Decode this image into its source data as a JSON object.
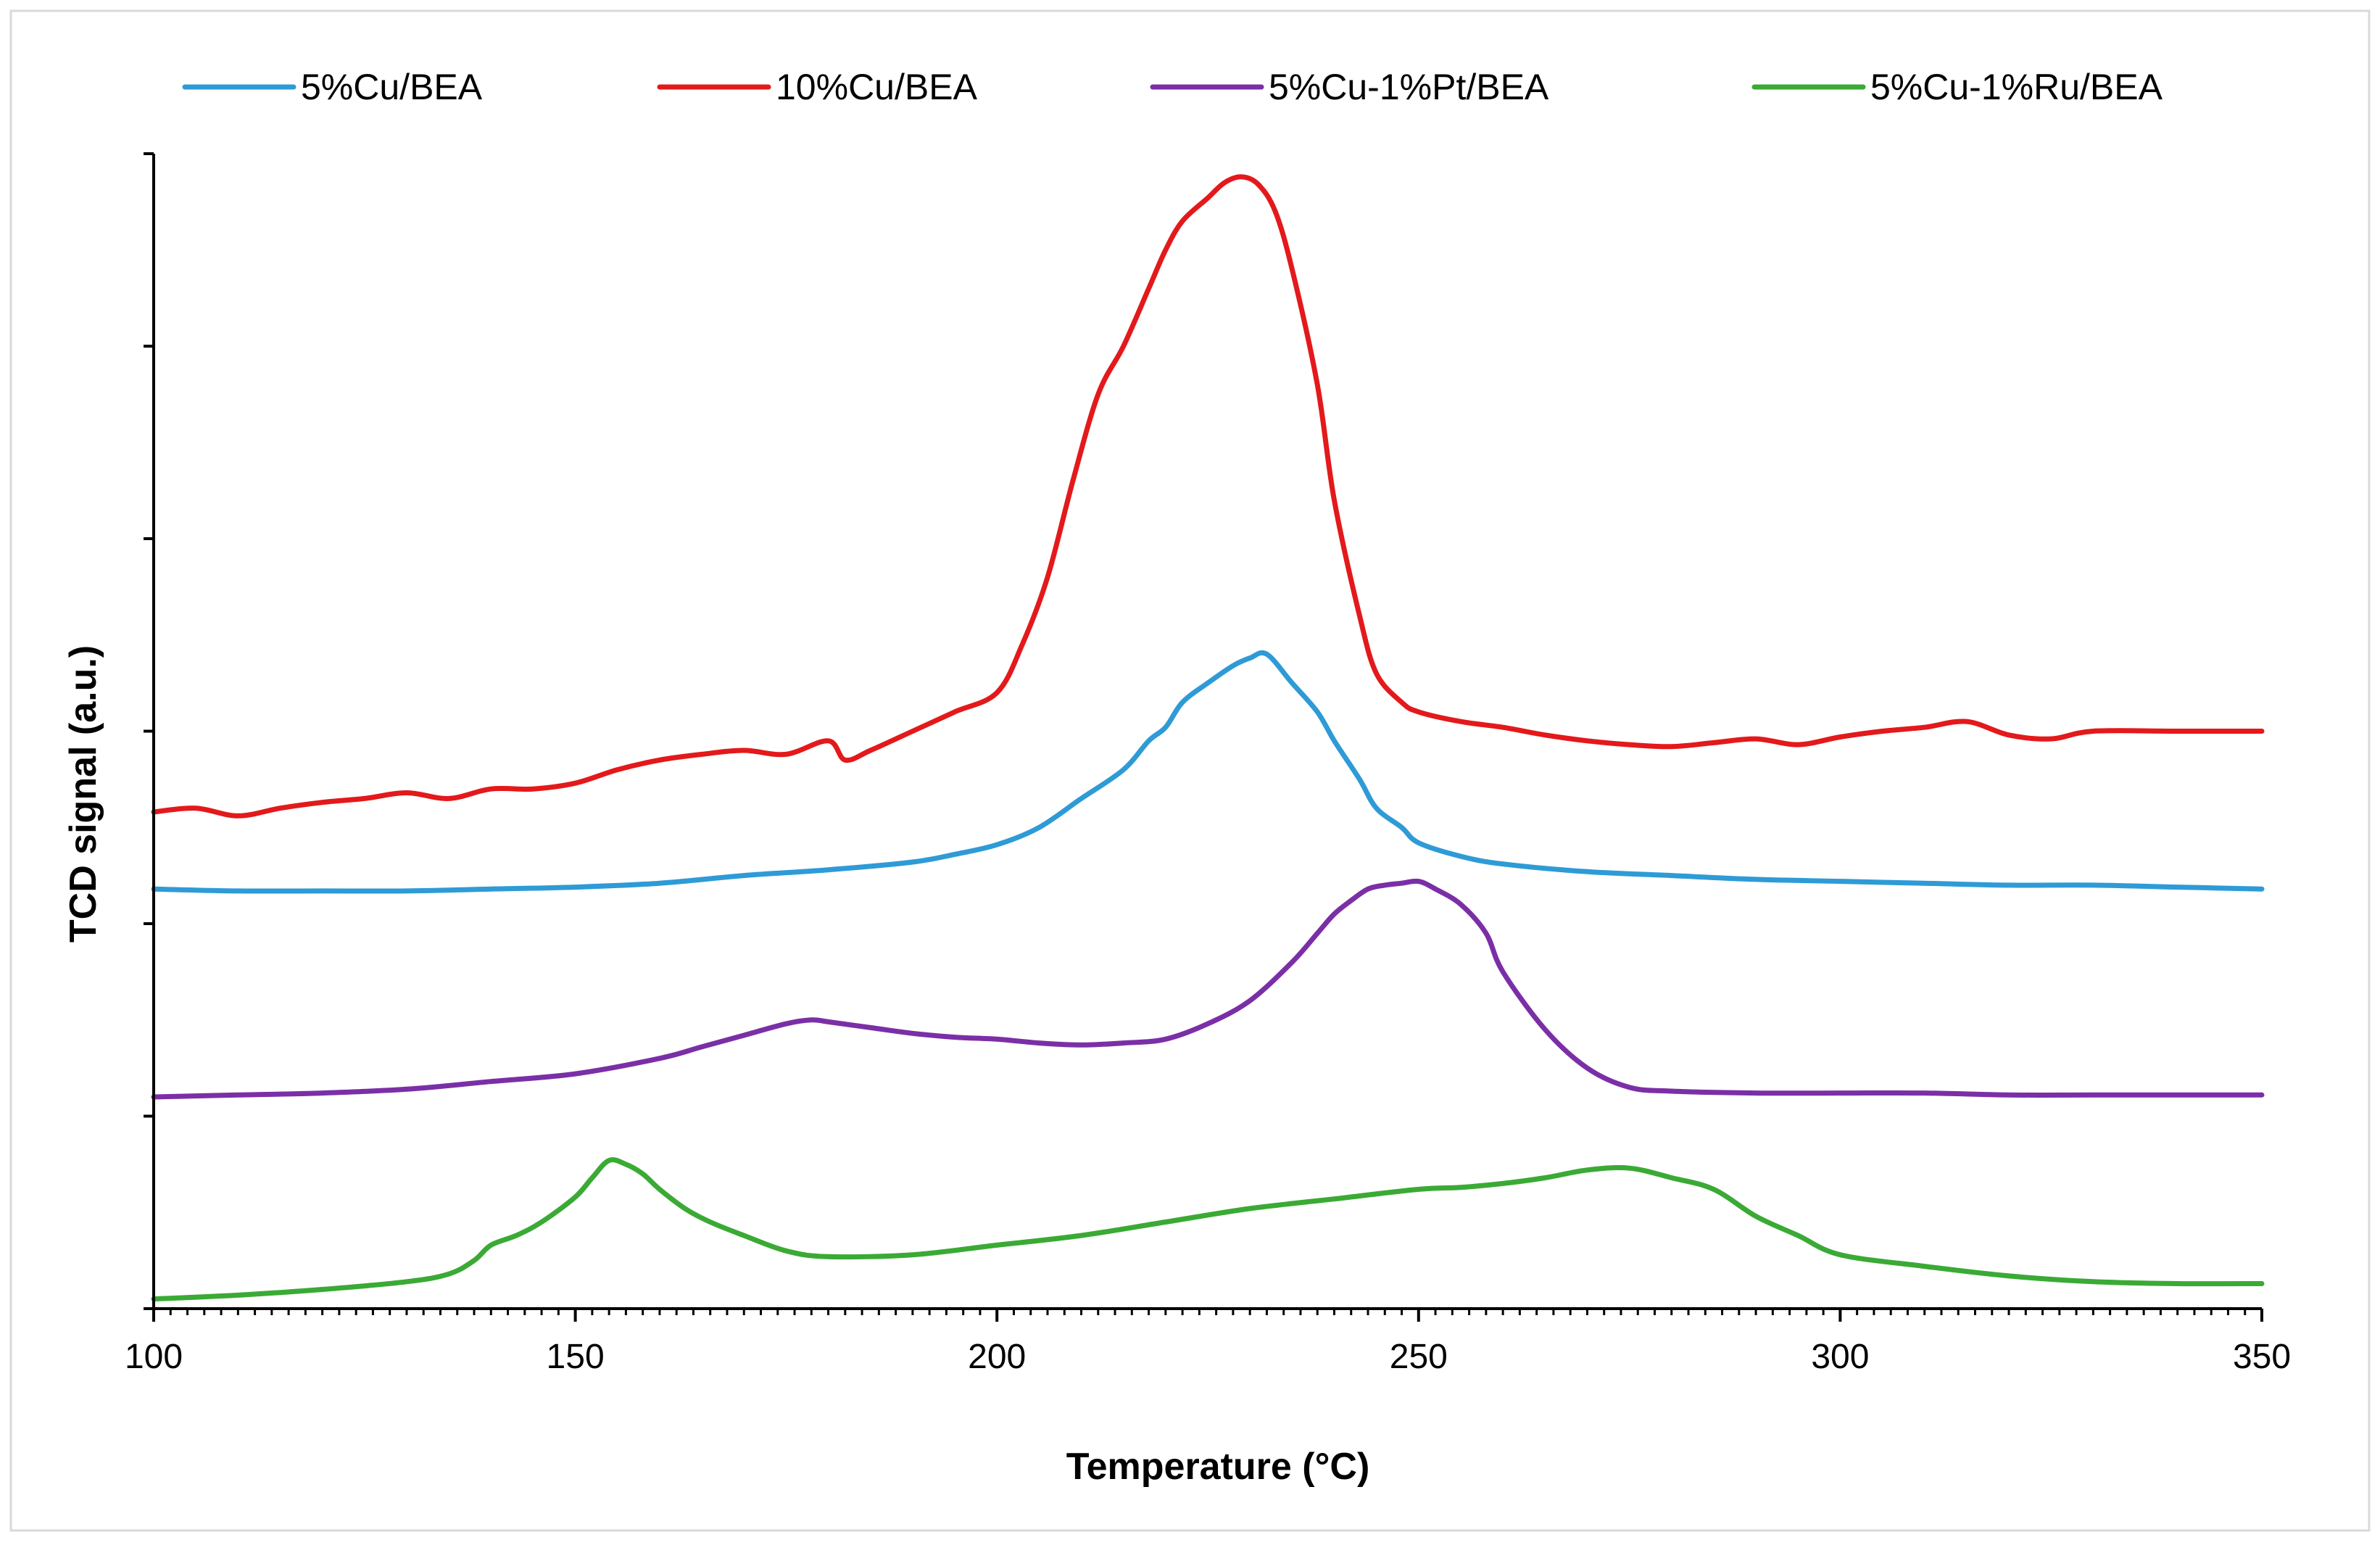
{
  "chart_data": {
    "type": "line",
    "title": "",
    "xlabel": "Temperature (°C)",
    "ylabel": "TCD signal (a.u.)",
    "xlim": [
      100,
      350
    ],
    "ylim": [
      0,
      6
    ],
    "x_ticks": [
      100,
      150,
      200,
      250,
      300,
      350
    ],
    "x_tick_labels": [
      "100",
      "150",
      "200",
      "250",
      "300",
      "350"
    ],
    "y_ticks": [
      0,
      1,
      2,
      3,
      4,
      5,
      6
    ],
    "grid": false,
    "legend_position": "top",
    "series": [
      {
        "name": "5%Cu/BEA",
        "color": "#2E9BD6",
        "x": [
          100,
          110,
          120,
          130,
          140,
          150,
          160,
          170,
          180,
          190,
          195,
          200,
          205,
          210,
          215,
          218,
          220,
          222,
          225,
          228,
          230,
          232,
          235,
          238,
          240,
          243,
          245,
          248,
          250,
          255,
          260,
          270,
          280,
          290,
          300,
          310,
          320,
          330,
          340,
          350
        ],
        "y": [
          2.18,
          2.17,
          2.17,
          2.17,
          2.18,
          2.19,
          2.21,
          2.25,
          2.28,
          2.32,
          2.36,
          2.41,
          2.5,
          2.65,
          2.8,
          2.95,
          3.02,
          3.15,
          3.25,
          3.34,
          3.38,
          3.4,
          3.25,
          3.1,
          2.95,
          2.75,
          2.6,
          2.5,
          2.42,
          2.35,
          2.31,
          2.27,
          2.25,
          2.23,
          2.22,
          2.21,
          2.2,
          2.2,
          2.19,
          2.18
        ]
      },
      {
        "name": "10%Cu/BEA",
        "color": "#E3191B",
        "x": [
          100,
          105,
          110,
          115,
          120,
          125,
          130,
          135,
          140,
          145,
          150,
          155,
          160,
          165,
          170,
          175,
          180,
          182,
          185,
          190,
          195,
          200,
          203,
          206,
          209,
          212,
          215,
          218,
          220,
          222,
          225,
          227,
          229,
          231,
          233,
          235,
          238,
          240,
          243,
          245,
          248,
          250,
          255,
          260,
          265,
          270,
          275,
          280,
          285,
          290,
          295,
          300,
          305,
          310,
          315,
          320,
          325,
          330,
          340,
          350
        ],
        "y": [
          2.58,
          2.6,
          2.56,
          2.6,
          2.63,
          2.65,
          2.68,
          2.65,
          2.7,
          2.7,
          2.73,
          2.8,
          2.85,
          2.88,
          2.9,
          2.88,
          2.95,
          2.85,
          2.9,
          3.0,
          3.1,
          3.2,
          3.45,
          3.8,
          4.3,
          4.75,
          5.0,
          5.3,
          5.5,
          5.65,
          5.77,
          5.85,
          5.88,
          5.84,
          5.7,
          5.4,
          4.8,
          4.2,
          3.6,
          3.3,
          3.15,
          3.1,
          3.05,
          3.02,
          2.98,
          2.95,
          2.93,
          2.92,
          2.94,
          2.96,
          2.93,
          2.97,
          3.0,
          3.02,
          3.05,
          2.98,
          2.96,
          3.0,
          3.0,
          3.0
        ]
      },
      {
        "name": "5%Cu-1%Pt/BEA",
        "color": "#7B2FA6",
        "x": [
          100,
          110,
          120,
          130,
          140,
          150,
          160,
          165,
          170,
          175,
          178,
          180,
          185,
          190,
          195,
          200,
          205,
          210,
          215,
          220,
          225,
          230,
          235,
          238,
          240,
          242,
          244,
          246,
          248,
          250,
          252,
          255,
          258,
          260,
          265,
          270,
          275,
          280,
          290,
          300,
          310,
          320,
          330,
          340,
          350
        ],
        "y": [
          1.1,
          1.11,
          1.12,
          1.14,
          1.18,
          1.22,
          1.3,
          1.36,
          1.42,
          1.48,
          1.5,
          1.49,
          1.46,
          1.43,
          1.41,
          1.4,
          1.38,
          1.37,
          1.38,
          1.4,
          1.48,
          1.6,
          1.8,
          1.95,
          2.05,
          2.12,
          2.18,
          2.2,
          2.21,
          2.22,
          2.18,
          2.1,
          1.95,
          1.75,
          1.45,
          1.25,
          1.15,
          1.13,
          1.12,
          1.12,
          1.12,
          1.11,
          1.11,
          1.11,
          1.11
        ]
      },
      {
        "name": "5%Cu-1%Ru/BEA",
        "color": "#3AAA35",
        "x": [
          100,
          110,
          120,
          130,
          135,
          138,
          140,
          143,
          146,
          150,
          152,
          154,
          156,
          158,
          160,
          163,
          166,
          170,
          175,
          180,
          190,
          200,
          210,
          220,
          230,
          240,
          250,
          255,
          260,
          265,
          270,
          275,
          280,
          285,
          290,
          295,
          300,
          310,
          320,
          330,
          340,
          350
        ],
        "y": [
          0.05,
          0.07,
          0.1,
          0.14,
          0.18,
          0.25,
          0.33,
          0.38,
          0.45,
          0.58,
          0.68,
          0.77,
          0.75,
          0.7,
          0.62,
          0.52,
          0.45,
          0.38,
          0.3,
          0.27,
          0.28,
          0.33,
          0.38,
          0.45,
          0.52,
          0.57,
          0.62,
          0.63,
          0.65,
          0.68,
          0.72,
          0.73,
          0.68,
          0.62,
          0.48,
          0.38,
          0.28,
          0.22,
          0.17,
          0.14,
          0.13,
          0.13
        ]
      }
    ]
  }
}
